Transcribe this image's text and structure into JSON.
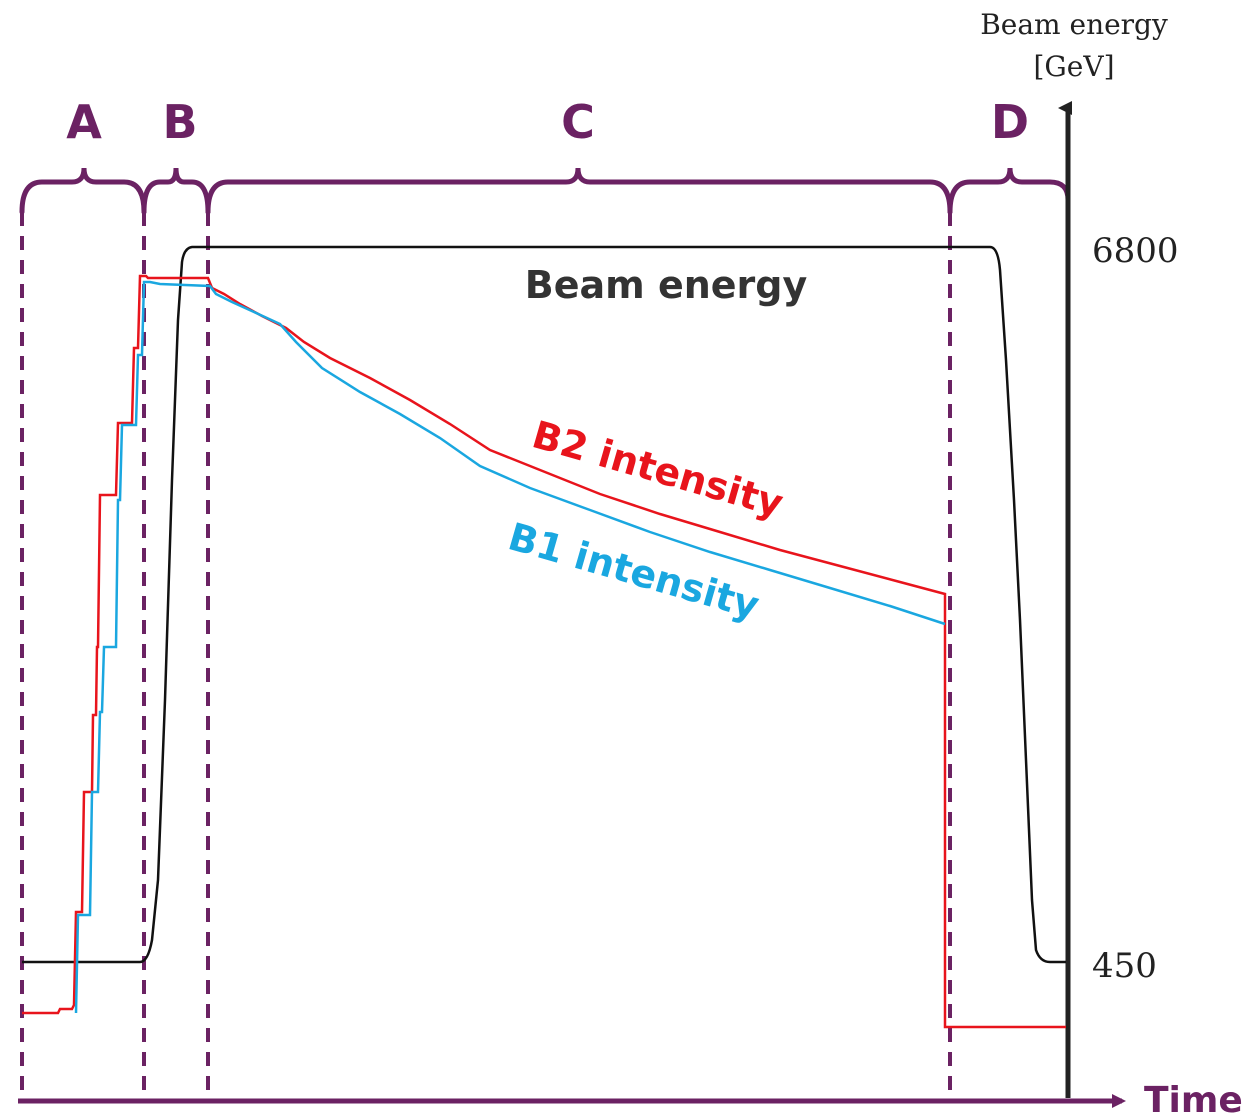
{
  "colors": {
    "phase": "#6b2263",
    "energy": "#111111",
    "b1": "#1aa7e0",
    "b2": "#e8141c",
    "axis": "#222222"
  },
  "phases": [
    {
      "id": "A",
      "label": "A"
    },
    {
      "id": "B",
      "label": "B"
    },
    {
      "id": "C",
      "label": "C"
    },
    {
      "id": "D",
      "label": "D"
    }
  ],
  "axis": {
    "y_title_line1": "Beam energy",
    "y_title_line2": "[GeV]",
    "tick_high": "6800",
    "tick_low": "450",
    "x_title": "Time"
  },
  "labels": {
    "energy": "Beam energy",
    "b2": "B2 intensity",
    "b1": "B1 intensity"
  }
}
